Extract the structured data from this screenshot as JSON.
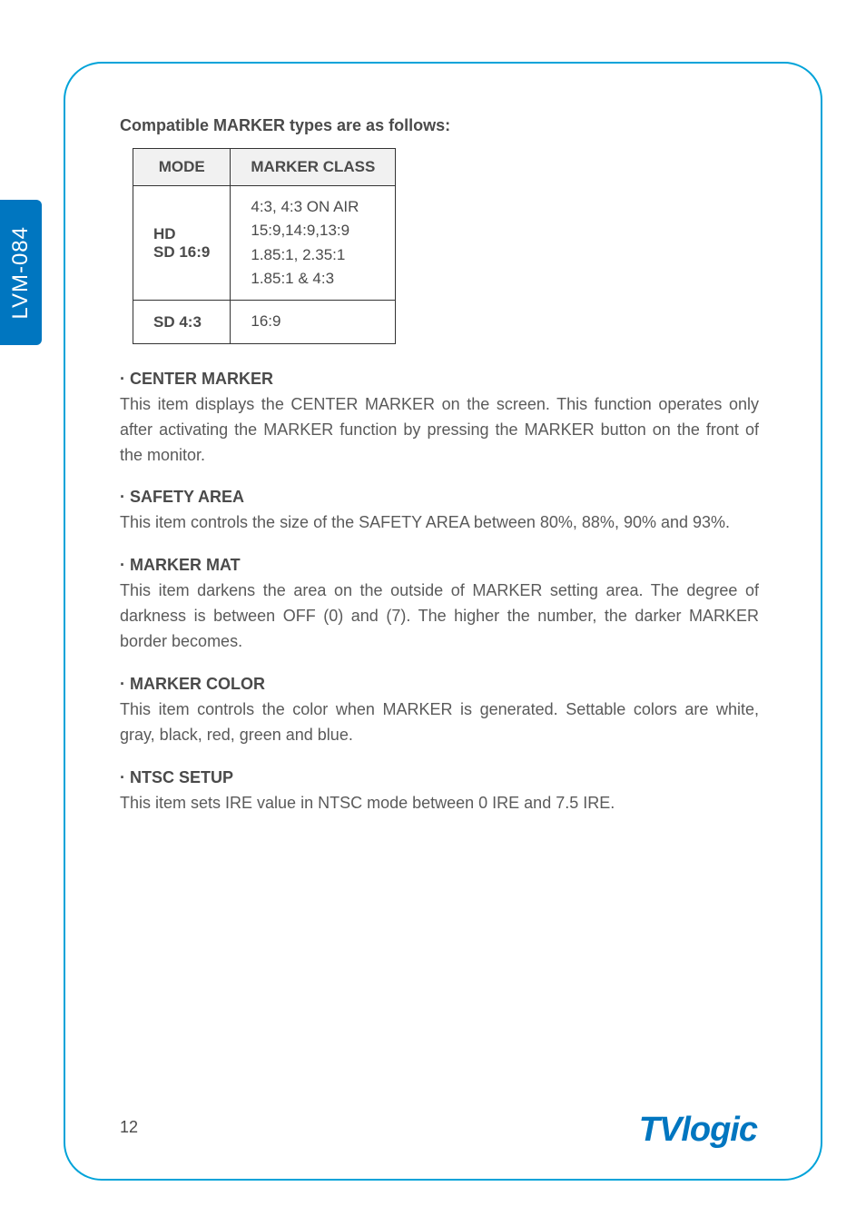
{
  "side_tab": {
    "label": "LVM-084"
  },
  "intro": "Compatible MARKER types are as follows:",
  "table": {
    "headers": [
      "MODE",
      "MARKER CLASS"
    ],
    "rows": [
      {
        "mode": "HD\nSD 16:9",
        "class": "4:3, 4:3 ON AIR\n15:9,14:9,13:9\n1.85:1, 2.35:1\n1.85:1 & 4:3"
      },
      {
        "mode": "SD 4:3",
        "class": "16:9"
      }
    ],
    "header_bg": "#f1f1f1",
    "border_color": "#333333"
  },
  "sections": [
    {
      "title": "· CENTER MARKER",
      "body": "This item displays the CENTER MARKER on the screen. This function operates only after activating the MARKER function by pressing the MARKER button on the front of the monitor."
    },
    {
      "title": "· SAFETY AREA",
      "body": "This item controls the size of the SAFETY AREA between 80%, 88%, 90% and 93%."
    },
    {
      "title": "· MARKER MAT",
      "body": "This item darkens the area on the outside of MARKER setting area. The degree of darkness is between OFF (0) and (7). The higher the number, the darker MARKER border becomes."
    },
    {
      "title": "· MARKER COLOR",
      "body": "This item controls the color when MARKER is generated. Settable colors are white, gray, black, red, green and blue."
    },
    {
      "title": "· NTSC SETUP",
      "body": "This item sets IRE value in NTSC mode between 0 IRE and 7.5 IRE."
    }
  ],
  "page_number": "12",
  "logo": {
    "part1": "TV",
    "part2": "logic",
    "color": "#0076c0"
  },
  "frame": {
    "border_color": "#00a3d9",
    "radius": 42
  },
  "tab": {
    "bg": "#0076c0",
    "text_color": "#ffffff"
  }
}
